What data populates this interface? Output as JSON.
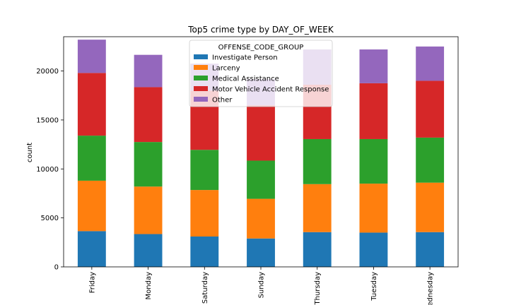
{
  "chart_data": {
    "type": "bar",
    "stacked": true,
    "title": "Top5 crime type by DAY_OF_WEEK",
    "xlabel": "",
    "ylabel": "count",
    "ylim": [
      0,
      23500
    ],
    "yticks": [
      0,
      5000,
      10000,
      15000,
      20000
    ],
    "categories": [
      "Friday",
      "Monday",
      "Saturday",
      "Sunday",
      "Thursday",
      "Tuesday",
      "Wednesday"
    ],
    "legend": {
      "title": "OFFENSE_CODE_GROUP",
      "position": "top-center"
    },
    "series": [
      {
        "name": "Investigate Person",
        "color": "#1f77b4",
        "values": [
          3650,
          3350,
          3100,
          2900,
          3550,
          3500,
          3550
        ]
      },
      {
        "name": "Larceny",
        "color": "#ff7f0e",
        "values": [
          5150,
          4850,
          4750,
          4050,
          4900,
          5000,
          5050
        ]
      },
      {
        "name": "Medical Assistance",
        "color": "#2ca02c",
        "values": [
          4600,
          4550,
          4100,
          3900,
          4600,
          4550,
          4600
        ]
      },
      {
        "name": "Motor Vehicle Accident Response",
        "color": "#d62728",
        "values": [
          6400,
          5600,
          6050,
          5650,
          5550,
          5700,
          5800
        ]
      },
      {
        "name": "Other",
        "color": "#9467bd",
        "values": [
          3400,
          3300,
          2750,
          2650,
          3600,
          3450,
          3500
        ]
      }
    ]
  }
}
